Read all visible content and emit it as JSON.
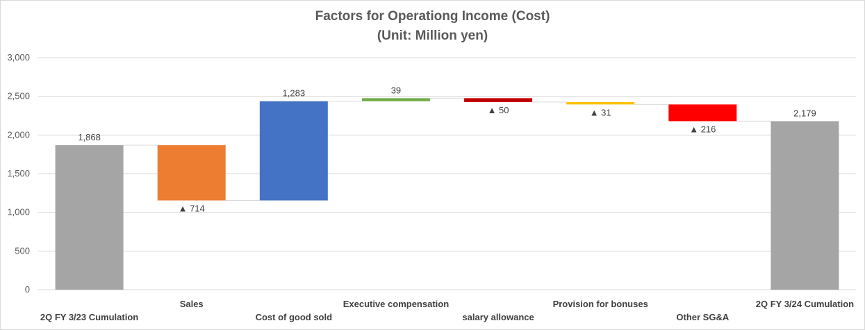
{
  "chart_data": {
    "type": "waterfall",
    "title": "Factors for Operationg Income (Cost)",
    "subtitle": "(Unit: Million yen)",
    "ylim": [
      0,
      3000
    ],
    "yticks": [
      "0",
      "500",
      "1,000",
      "1,500",
      "2,000",
      "2,500",
      "3,000"
    ],
    "grid": true,
    "categories": [
      "2Q FY 3/23 Cumulation",
      "Sales",
      "Cost of good sold",
      "Executive compensation",
      "salary allowance",
      "Provision for bonuses",
      "Other SG&A",
      "2Q FY 3/24 Cumulation"
    ],
    "bars": [
      {
        "kind": "total",
        "value": 1868,
        "base": 0,
        "top": 1868,
        "label": "1,868",
        "color": "#a5a5a5",
        "label_pos": "above"
      },
      {
        "kind": "change",
        "value": -714,
        "base": 1154,
        "top": 1868,
        "label": "▲ 714",
        "color": "#ed7d31",
        "label_pos": "below"
      },
      {
        "kind": "change",
        "value": 1283,
        "base": 1154,
        "top": 2437,
        "label": "1,283",
        "color": "#4472c4",
        "label_pos": "above"
      },
      {
        "kind": "change",
        "value": 39,
        "base": 2437,
        "top": 2476,
        "label": "39",
        "color": "#70ad47",
        "label_pos": "above"
      },
      {
        "kind": "change",
        "value": -50,
        "base": 2426,
        "top": 2476,
        "label": "▲ 50",
        "color": "#c00000",
        "label_pos": "below"
      },
      {
        "kind": "change",
        "value": -31,
        "base": 2395,
        "top": 2426,
        "label": "▲ 31",
        "color": "#ffc000",
        "label_pos": "below"
      },
      {
        "kind": "change",
        "value": -216,
        "base": 2179,
        "top": 2395,
        "label": "▲ 216",
        "color": "#ff0000",
        "label_pos": "below"
      },
      {
        "kind": "total",
        "value": 2179,
        "base": 0,
        "top": 2179,
        "label": "2,179",
        "color": "#a5a5a5",
        "label_pos": "above"
      }
    ]
  }
}
